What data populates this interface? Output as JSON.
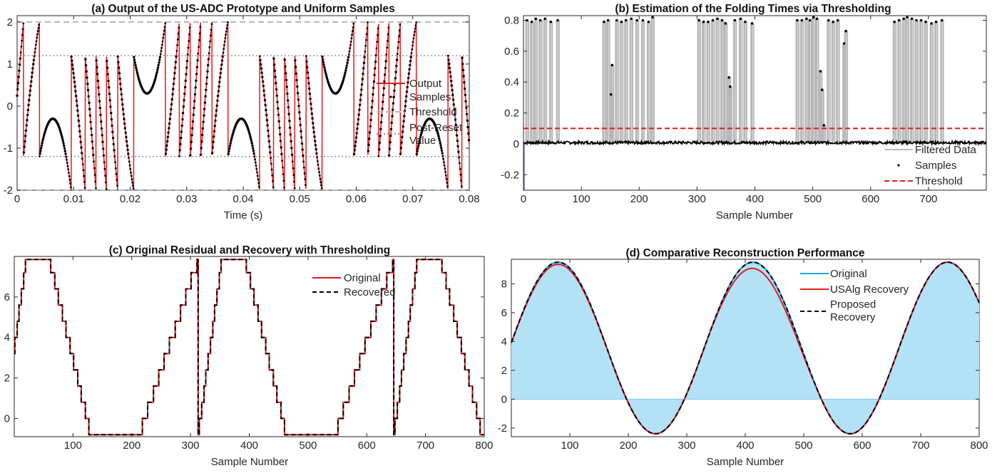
{
  "chart_data": [
    {
      "id": "a",
      "type": "line",
      "title": "(a) Output of the US-ADC Prototype and Uniform Samples",
      "xlabel": "Time (s)",
      "ylabel": "",
      "xlim": [
        0,
        0.08
      ],
      "ylim": [
        -2,
        2.15
      ],
      "xticks": [
        0,
        0.01,
        0.02,
        0.03,
        0.04,
        0.05,
        0.06,
        0.07,
        0.08
      ],
      "xtick_labels": [
        "0",
        "0.01",
        "0.02",
        "0.03",
        "0.04",
        "0.05",
        "0.06",
        "0.07",
        "0.08"
      ],
      "yticks": [
        -2,
        -1,
        0,
        1,
        2
      ],
      "ytick_labels": [
        "-2",
        "-1",
        "0",
        "1",
        "2"
      ],
      "threshold": 2,
      "post_reset": 1.2,
      "legend": [
        "Output",
        "Samples",
        "Threshold",
        "Post-Reset Value"
      ],
      "legend_position": "right",
      "colors": {
        "output": "#e41a1c",
        "samples": "#000000",
        "threshold": "#b5b5b5",
        "post_reset": "#9a9a9a"
      }
    },
    {
      "id": "b",
      "type": "line",
      "title": "(b) Estimation of the Folding Times via Thresholding",
      "xlabel": "Sample Number",
      "ylabel": "",
      "xlim": [
        0,
        800
      ],
      "ylim": [
        -0.3,
        0.83
      ],
      "xticks": [
        0,
        100,
        200,
        300,
        400,
        500,
        600,
        700
      ],
      "xtick_labels": [
        "0",
        "100",
        "200",
        "300",
        "400",
        "500",
        "600",
        "700"
      ],
      "yticks": [
        -0.2,
        0,
        0.2,
        0.4,
        0.6,
        0.8
      ],
      "ytick_labels": [
        "-0.2",
        "0",
        "0.2",
        "0.4",
        "0.6",
        "0.8"
      ],
      "threshold": 0.1,
      "spike_positions": [
        5,
        13,
        20,
        28,
        36,
        46,
        58,
        138,
        145,
        150,
        152,
        160,
        168,
        176,
        185,
        195,
        205,
        215,
        222,
        302,
        310,
        318,
        326,
        334,
        342,
        348,
        354,
        356,
        364,
        374,
        382,
        394,
        472,
        480,
        488,
        494,
        500,
        506,
        512,
        515,
        518,
        526,
        534,
        542,
        553,
        556,
        640,
        648,
        656,
        662,
        670,
        678,
        686,
        694,
        704,
        712,
        722
      ],
      "spike_heights": [
        0.8,
        0.79,
        0.81,
        0.8,
        0.81,
        0.79,
        0.8,
        0.79,
        0.8,
        0.32,
        0.51,
        0.8,
        0.79,
        0.8,
        0.81,
        0.8,
        0.8,
        0.79,
        0.82,
        0.8,
        0.79,
        0.79,
        0.8,
        0.81,
        0.8,
        0.78,
        0.43,
        0.37,
        0.8,
        0.81,
        0.79,
        0.78,
        0.8,
        0.8,
        0.81,
        0.8,
        0.82,
        0.81,
        0.47,
        0.35,
        0.12,
        0.8,
        0.79,
        0.8,
        0.65,
        0.73,
        0.79,
        0.8,
        0.81,
        0.82,
        0.81,
        0.8,
        0.8,
        0.79,
        0.78,
        0.79,
        0.8
      ],
      "legend": [
        "Filtered Data",
        "Samples",
        "Threshold"
      ],
      "legend_position": "bottom-right",
      "colors": {
        "filtered": "#b8b8b8",
        "samples": "#000000",
        "threshold": "#e41a1c"
      }
    },
    {
      "id": "c",
      "type": "line",
      "title": "(c) Original Residual and Recovery with Thresholding",
      "xlabel": "Sample Number",
      "ylabel": "",
      "xlim": [
        0,
        800
      ],
      "ylim": [
        -0.9,
        8
      ],
      "xticks": [
        100,
        200,
        300,
        400,
        500,
        600,
        700,
        800
      ],
      "xtick_labels": [
        "100",
        "200",
        "300",
        "400",
        "500",
        "600",
        "700",
        "800"
      ],
      "yticks": [
        0,
        2,
        4,
        6
      ],
      "ytick_labels": [
        "0",
        "2",
        "4",
        "6"
      ],
      "legend": [
        "Original",
        "Recovered"
      ],
      "legend_position": "top-center",
      "colors": {
        "original": "#e41a1c",
        "recovered": "#000000"
      }
    },
    {
      "id": "d",
      "type": "line",
      "title": "(d) Comparative Reconstruction Performance",
      "xlabel": "Sample Number",
      "ylabel": "",
      "xlim": [
        0,
        800
      ],
      "ylim": [
        -2.6,
        9.7
      ],
      "xticks": [
        100,
        200,
        300,
        400,
        500,
        600,
        700,
        800
      ],
      "xtick_labels": [
        "100",
        "200",
        "300",
        "400",
        "500",
        "600",
        "700",
        "800"
      ],
      "yticks": [
        -2,
        0,
        2,
        4,
        6,
        8
      ],
      "ytick_labels": [
        "-2",
        "0",
        "2",
        "4",
        "6",
        "8"
      ],
      "legend": [
        "Original",
        "USAlg Recovery",
        "Proposed Recovery"
      ],
      "legend_position": "top-center",
      "colors": {
        "original": "#1aa7e6",
        "fill": "#b3e2f7",
        "usalg": "#e41a1c",
        "proposed": "#000000"
      }
    }
  ]
}
